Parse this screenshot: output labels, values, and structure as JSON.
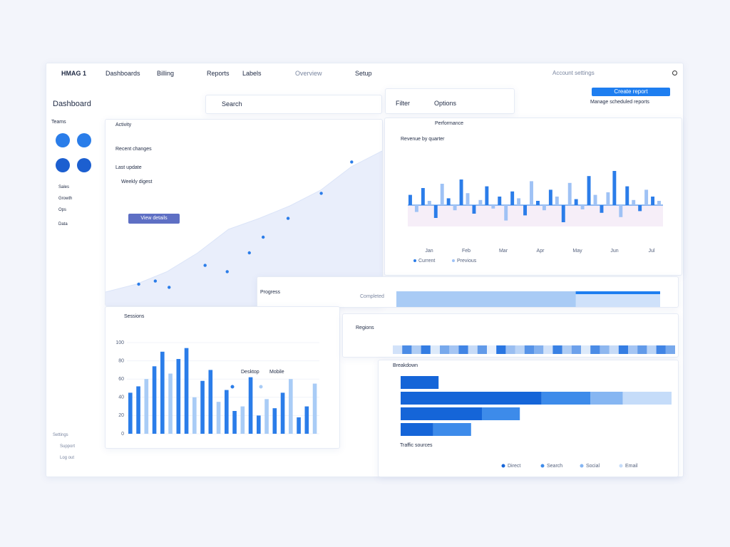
{
  "nav": {
    "brand": "HMAG 1",
    "items": [
      "Dashboards",
      "Billing",
      "Reports",
      "Labels"
    ],
    "center": "Overview",
    "right": "Setup",
    "account": "Account settings"
  },
  "header": {
    "title": "Dashboard",
    "search": "Search",
    "filter": "Filter",
    "options": "Options",
    "button": "Create report",
    "note": "Manage scheduled reports"
  },
  "sidebar": {
    "title": "Teams",
    "items": [
      "Sales",
      "Growth",
      "Ops",
      "Data"
    ],
    "footer": [
      "Settings",
      "Support",
      "Log out"
    ]
  },
  "trend": {
    "title": "Activity",
    "labels": [
      "Recent changes",
      "Last update",
      "Weekly digest"
    ],
    "action": "View details",
    "area": [
      5,
      10,
      18,
      30,
      45,
      52,
      60,
      70,
      85,
      95
    ],
    "points_x": [
      1.2,
      1.8,
      2.3,
      3.6,
      4.4,
      5.2,
      5.7,
      6.6,
      7.8,
      8.9
    ],
    "points_y": [
      10,
      12,
      8,
      22,
      18,
      30,
      40,
      52,
      68,
      88
    ]
  },
  "performance": {
    "title": "Performance",
    "subtitle": "Revenue by quarter",
    "ylim": [
      -40,
      60
    ],
    "categories": [
      "Jan",
      "Feb",
      "Mar",
      "Apr",
      "May",
      "Jun",
      "Jul"
    ],
    "series": [
      {
        "name": "Current",
        "color": "#2b7de9"
      },
      {
        "name": "Previous",
        "color": "#9fc2f5"
      }
    ],
    "values": [
      12,
      -8,
      20,
      5,
      -15,
      25,
      8,
      -6,
      30,
      14,
      -10,
      6,
      22,
      -4,
      10,
      -18,
      16,
      8,
      -12,
      28,
      5,
      -6,
      18,
      10,
      -20,
      26,
      7,
      -5,
      34,
      12,
      -9,
      15,
      40,
      -14,
      22,
      6,
      -7,
      18,
      10,
      5
    ]
  },
  "progress": {
    "title": "Progress",
    "label": "Completed",
    "value": 68,
    "xlim": [
      0,
      100
    ]
  },
  "sessions": {
    "title": "Sessions",
    "legend": [
      "Desktop",
      "Mobile"
    ],
    "colors": [
      "#2b7de9",
      "#a9ccf6"
    ],
    "ylim": [
      0,
      100
    ],
    "yticks": [
      0,
      20,
      40,
      60,
      80,
      100
    ],
    "values": [
      45,
      52,
      60,
      74,
      90,
      66,
      82,
      94,
      40,
      58,
      70,
      35,
      48,
      25,
      30,
      62,
      20,
      38,
      28,
      45,
      60,
      18,
      30,
      55
    ]
  },
  "regions": {
    "title": "Regions",
    "values": [
      20,
      80,
      35,
      90,
      15,
      60,
      40,
      85,
      25,
      70,
      10,
      95,
      45,
      30,
      75,
      55,
      20,
      88,
      35,
      65,
      15,
      80,
      50,
      25,
      90,
      40,
      70,
      30,
      85,
      60
    ]
  },
  "breakdown": {
    "title": "Breakdown",
    "footer": "Traffic sources",
    "xlim": [
      0,
      100
    ],
    "series": [
      {
        "name": "Direct",
        "color": "#1565d8",
        "values": [
          14,
          52,
          30,
          12
        ]
      },
      {
        "name": "Search",
        "color": "#3d8bea",
        "values": [
          0,
          18,
          14,
          14
        ]
      },
      {
        "name": "Social",
        "color": "#86b6f2",
        "values": [
          0,
          12,
          0,
          0
        ]
      },
      {
        "name": "Email",
        "color": "#c5dcf9",
        "values": [
          0,
          18,
          0,
          0
        ]
      }
    ]
  }
}
